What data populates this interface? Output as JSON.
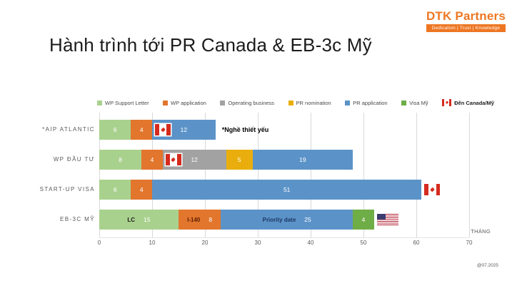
{
  "brand": {
    "name_d": "D",
    "name_rest": "TK Partners",
    "tagline": "Dedication | Trust | Knowledge",
    "accent_color": "#EE7623"
  },
  "title": "Hành trình tới PR Canada & EB-3c Mỹ",
  "footer_note": "@07.2025",
  "chart_data": {
    "type": "bar",
    "orientation": "horizontal",
    "stacked": true,
    "xlabel": "THÁNG",
    "xlim": [
      0,
      70
    ],
    "xticks": [
      0,
      10,
      20,
      30,
      40,
      50,
      60,
      70
    ],
    "grid": "vertical",
    "legend_position": "top",
    "flag_colors": {
      "canada_red": "#D52B1E",
      "usa_red": "#B22234",
      "usa_blue": "#3C3B6E"
    },
    "legend": [
      {
        "label": "WP Support Letter",
        "color": "#A9D18E"
      },
      {
        "label": "WP application",
        "color": "#E2762D"
      },
      {
        "label": "Operating business",
        "color": "#A2A2A2"
      },
      {
        "label": "PR nomination",
        "color": "#E9AE0D"
      },
      {
        "label": "PR application",
        "color": "#5B93C8"
      },
      {
        "label": "Visa Mỹ",
        "color": "#6FAD47"
      },
      {
        "label": "Đến Canada/Mỹ",
        "flag": "canada",
        "bold": true
      }
    ],
    "categories": [
      "*AIP ATLANTIC",
      "WP ĐẦU TƯ",
      "START-UP VISA",
      "EB-3C MỸ"
    ],
    "rows": [
      {
        "category": "*AIP ATLANTIC",
        "segments": [
          {
            "series": "WP Support Letter",
            "value": 6
          },
          {
            "series": "WP application",
            "value": 4
          },
          {
            "series": "PR application",
            "value": 12
          }
        ],
        "flag": {
          "type": "canada",
          "at": 10
        },
        "annotation": "*Nghề thiết yếu"
      },
      {
        "category": "WP ĐẦU TƯ",
        "segments": [
          {
            "series": "WP Support Letter",
            "value": 8
          },
          {
            "series": "WP application",
            "value": 4
          },
          {
            "series": "Operating business",
            "value": 12
          },
          {
            "series": "PR nomination",
            "value": 5
          },
          {
            "series": "PR application",
            "value": 19
          }
        ],
        "flag": {
          "type": "canada",
          "at": 12
        }
      },
      {
        "category": "START-UP VISA",
        "segments": [
          {
            "series": "WP Support Letter",
            "value": 6
          },
          {
            "series": "WP application",
            "value": 4
          },
          {
            "series": "PR application",
            "value": 51
          }
        ],
        "flag": {
          "type": "canada",
          "at": 61
        }
      },
      {
        "category": "EB-3C MỸ",
        "segments": [
          {
            "series": "WP Support Letter",
            "value": 15,
            "name_label": "LC",
            "name_color": "#1a1a1a"
          },
          {
            "series": "WP application",
            "value": 8,
            "name_label": "I-140",
            "name_color": "#5E1F04"
          },
          {
            "series": "PR application",
            "value": 25,
            "name_label": "Priority date",
            "name_color": "#1F3864"
          },
          {
            "series": "Visa Mỹ",
            "value": 4
          }
        ],
        "flag": {
          "type": "usa",
          "at": 52
        }
      }
    ]
  }
}
